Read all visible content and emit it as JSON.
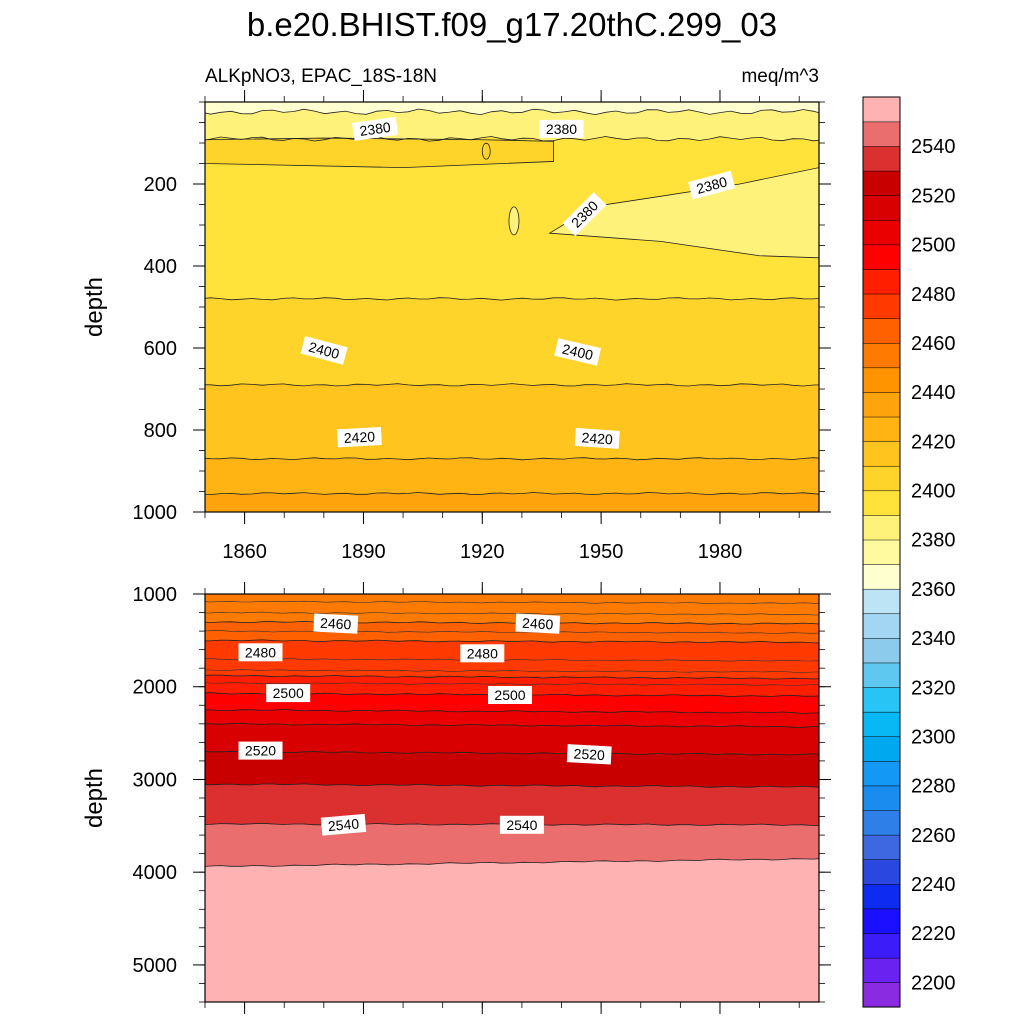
{
  "title": "b.e20.BHIST.f09_g17.20thC.299_03",
  "subtitle_left": "ALKpNO3, EPAC_18S-18N",
  "subtitle_right": "meq/m^3",
  "colors": {
    "levels": [
      2200,
      2210,
      2220,
      2230,
      2240,
      2250,
      2260,
      2270,
      2280,
      2290,
      2300,
      2310,
      2320,
      2330,
      2340,
      2350,
      2360,
      2370,
      2380,
      2390,
      2400,
      2410,
      2420,
      2430,
      2440,
      2450,
      2460,
      2470,
      2480,
      2490,
      2500,
      2510,
      2520,
      2530,
      2540,
      2550
    ],
    "fills": [
      "#8a2be2",
      "#6a22f0",
      "#3c1cf8",
      "#1a10ff",
      "#0e2cf0",
      "#2a48e0",
      "#3e68e0",
      "#2f7fe8",
      "#1a8cf0",
      "#1399f5",
      "#00a8f0",
      "#08b8f5",
      "#28c4f5",
      "#5ec8f0",
      "#8ccbeb",
      "#a3d6f2",
      "#bde4f5",
      "#ffffd0",
      "#fffaa0",
      "#fff27a",
      "#ffe23a",
      "#ffd42a",
      "#ffc41e",
      "#ffb414",
      "#ffa40c",
      "#ff9400",
      "#ff7a00",
      "#ff6000",
      "#ff3a00",
      "#ff1e00",
      "#ff0000",
      "#ea0000",
      "#d80000",
      "#c80000",
      "#da3030",
      "#ea6e6e",
      "#ffb2b2"
    ]
  },
  "chart_data": [
    {
      "type": "contour",
      "panel": "upper",
      "xlabel": "",
      "ylabel": "depth",
      "xlim": [
        1850,
        2005
      ],
      "ylim": [
        1000,
        0
      ],
      "x_ticks": [
        1860,
        1890,
        1920,
        1950,
        1980
      ],
      "y_ticks": [
        200,
        400,
        600,
        800,
        1000
      ],
      "contour_labels": [
        {
          "text": "2380",
          "x": 1893,
          "y": 68,
          "angle": -8
        },
        {
          "text": "2380",
          "x": 1940,
          "y": 68,
          "angle": 0
        },
        {
          "text": "2380",
          "x": 1946,
          "y": 275,
          "angle": -45
        },
        {
          "text": "2380",
          "x": 1978,
          "y": 205,
          "angle": -15
        },
        {
          "text": "2400",
          "x": 1880,
          "y": 608,
          "angle": 15
        },
        {
          "text": "2400",
          "x": 1944,
          "y": 612,
          "angle": 13
        },
        {
          "text": "2420",
          "x": 1889,
          "y": 820,
          "angle": -3
        },
        {
          "text": "2420",
          "x": 1949,
          "y": 823,
          "angle": 4
        }
      ]
    },
    {
      "type": "contour",
      "panel": "lower",
      "xlabel": "",
      "ylabel": "depth",
      "xlim": [
        1850,
        2005
      ],
      "ylim": [
        5400,
        1000
      ],
      "y_ticks": [
        1000,
        2000,
        3000,
        4000,
        5000
      ],
      "contour_labels": [
        {
          "text": "2460",
          "x": 1883,
          "y": 1330,
          "angle": 3
        },
        {
          "text": "2460",
          "x": 1934,
          "y": 1330,
          "angle": 3
        },
        {
          "text": "2480",
          "x": 1864,
          "y": 1640,
          "angle": 0
        },
        {
          "text": "2480",
          "x": 1920,
          "y": 1650,
          "angle": 0
        },
        {
          "text": "2500",
          "x": 1871,
          "y": 2080,
          "angle": 0
        },
        {
          "text": "2500",
          "x": 1927,
          "y": 2100,
          "angle": 0
        },
        {
          "text": "2520",
          "x": 1864,
          "y": 2700,
          "angle": 0
        },
        {
          "text": "2520",
          "x": 1947,
          "y": 2740,
          "angle": 3
        },
        {
          "text": "2540",
          "x": 1885,
          "y": 3500,
          "angle": -5
        },
        {
          "text": "2540",
          "x": 1930,
          "y": 3500,
          "angle": 0
        }
      ]
    }
  ],
  "colorbar": {
    "tick_labels": [
      "2200",
      "2220",
      "2240",
      "2260",
      "2280",
      "2300",
      "2320",
      "2340",
      "2360",
      "2380",
      "2400",
      "2420",
      "2440",
      "2460",
      "2480",
      "2500",
      "2520",
      "2540"
    ]
  }
}
